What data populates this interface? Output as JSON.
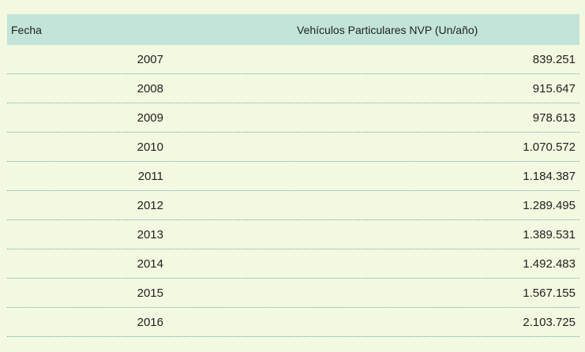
{
  "table": {
    "headers": {
      "date": "Fecha",
      "vehicles": "Vehículos Particulares NVP (Un/año)"
    },
    "rows": [
      {
        "year": "2007",
        "value": "839.251"
      },
      {
        "year": "2008",
        "value": "915.647"
      },
      {
        "year": "2009",
        "value": "978.613"
      },
      {
        "year": "2010",
        "value": "1.070.572"
      },
      {
        "year": "2011",
        "value": "1.184.387"
      },
      {
        "year": "2012",
        "value": "1.289.495"
      },
      {
        "year": "2013",
        "value": "1.389.531"
      },
      {
        "year": "2014",
        "value": "1.492.483"
      },
      {
        "year": "2015",
        "value": "1.567.155"
      },
      {
        "year": "2016",
        "value": "2.103.725"
      }
    ]
  },
  "colors": {
    "page_background": "#f3f8e0",
    "header_background": "#c2e4d9",
    "row_divider": "#5fa9b7"
  }
}
